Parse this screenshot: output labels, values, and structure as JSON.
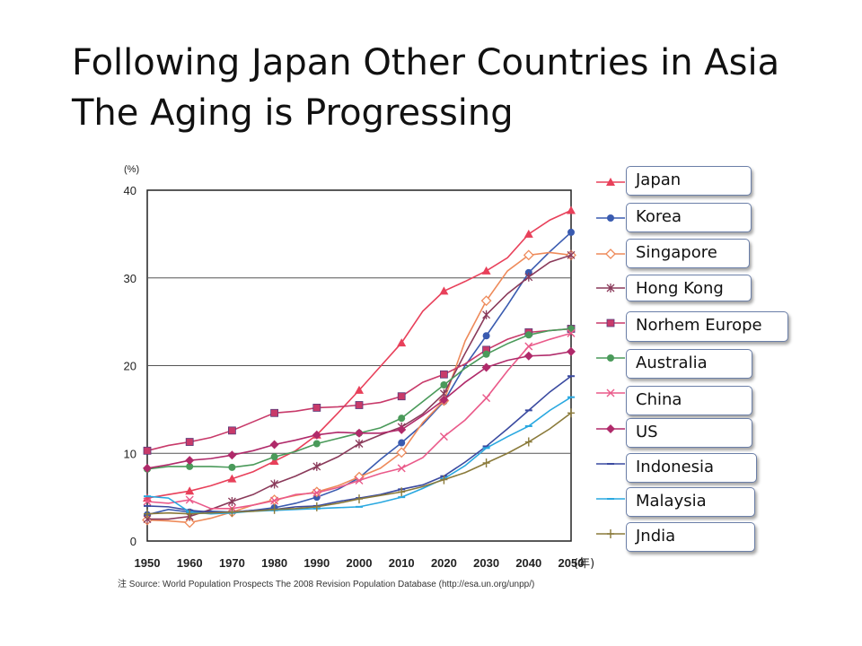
{
  "title_line1": "Following Japan  Other Countries in Asia",
  "title_line2": "The Aging is Progressing",
  "source": "注 Source: World Population Prospects The 2008 Revision Population Database (http://esa.un.org/unpp/)",
  "chart_data": {
    "type": "line",
    "y_unit": "(%)",
    "ylim": [
      0,
      40
    ],
    "yticks": [
      0,
      10,
      20,
      30,
      40
    ],
    "xlim": [
      1950,
      2050
    ],
    "xticks": [
      1950,
      1960,
      1970,
      1980,
      1990,
      2000,
      2010,
      2020,
      2030,
      2040,
      2050
    ],
    "x_unit": "(年)",
    "grid": "horizontal",
    "legend_position": "right",
    "x": [
      1950,
      1955,
      1960,
      1965,
      1970,
      1975,
      1980,
      1985,
      1990,
      1995,
      2000,
      2005,
      2010,
      2015,
      2020,
      2025,
      2030,
      2035,
      2040,
      2045,
      2050
    ],
    "series": [
      {
        "name": "Japan",
        "color": "#e8405a",
        "marker": "triangle",
        "values": [
          4.9,
          5.3,
          5.7,
          6.3,
          7.1,
          7.9,
          9.1,
          10.3,
          12.1,
          14.6,
          17.2,
          19.9,
          22.6,
          26.2,
          28.5,
          29.6,
          30.8,
          32.3,
          35.0,
          36.6,
          37.7
        ]
      },
      {
        "name": "Korea",
        "color": "#3a5bb0",
        "marker": "circle",
        "values": [
          3.0,
          3.6,
          3.3,
          3.4,
          3.3,
          3.5,
          3.8,
          4.3,
          5.0,
          5.9,
          7.2,
          9.3,
          11.2,
          13.3,
          15.9,
          20.0,
          23.4,
          26.9,
          30.6,
          33.0,
          35.2
        ]
      },
      {
        "name": "Singapore",
        "color": "#ee8a5a",
        "marker": "diamond-open",
        "values": [
          2.4,
          2.3,
          2.1,
          2.6,
          3.3,
          4.1,
          4.7,
          5.2,
          5.6,
          6.3,
          7.3,
          8.3,
          10.1,
          13.5,
          16.0,
          22.8,
          27.4,
          30.8,
          32.6,
          32.9,
          32.6
        ]
      },
      {
        "name": "Hong Kong",
        "color": "#8a3a5a",
        "marker": "star",
        "values": [
          2.5,
          2.5,
          2.8,
          3.6,
          4.5,
          5.3,
          6.5,
          7.4,
          8.5,
          9.6,
          11.1,
          12.1,
          13.0,
          14.5,
          16.8,
          21.4,
          25.8,
          28.2,
          30.1,
          31.8,
          32.6
        ]
      },
      {
        "name": "Norhem Europe",
        "color": "#c83a6a",
        "marker": "square",
        "values": [
          10.3,
          10.9,
          11.3,
          11.8,
          12.6,
          13.6,
          14.6,
          14.8,
          15.2,
          15.3,
          15.5,
          15.8,
          16.5,
          18.1,
          19.0,
          20.2,
          21.8,
          23.0,
          23.8,
          24.0,
          24.2
        ]
      },
      {
        "name": "Australia",
        "color": "#4a9a5a",
        "marker": "circle",
        "values": [
          8.2,
          8.5,
          8.5,
          8.5,
          8.4,
          8.7,
          9.6,
          10.2,
          11.1,
          11.7,
          12.3,
          12.9,
          14.0,
          15.9,
          17.8,
          19.7,
          21.3,
          22.5,
          23.5,
          24.0,
          24.2
        ]
      },
      {
        "name": "China",
        "color": "#ea5a8a",
        "marker": "x",
        "values": [
          4.5,
          4.3,
          4.7,
          3.7,
          3.7,
          4.1,
          4.6,
          5.3,
          5.5,
          6.1,
          6.9,
          7.7,
          8.3,
          9.5,
          11.9,
          13.8,
          16.3,
          19.4,
          22.2,
          23.0,
          23.7
        ]
      },
      {
        "name": "US",
        "color": "#b02a6a",
        "marker": "diamond",
        "values": [
          8.3,
          8.7,
          9.2,
          9.4,
          9.8,
          10.3,
          11.0,
          11.5,
          12.1,
          12.4,
          12.3,
          12.3,
          12.7,
          14.3,
          16.1,
          18.1,
          19.8,
          20.6,
          21.1,
          21.2,
          21.6
        ]
      },
      {
        "name": "Indonesia",
        "color": "#3a4aa0",
        "marker": "dash",
        "values": [
          4.0,
          3.9,
          3.5,
          3.3,
          3.3,
          3.5,
          3.6,
          3.9,
          4.0,
          4.5,
          4.9,
          5.3,
          5.9,
          6.4,
          7.4,
          9.0,
          10.8,
          12.8,
          14.9,
          17.0,
          18.8
        ]
      },
      {
        "name": "Malaysia",
        "color": "#29a8e0",
        "marker": "dash",
        "values": [
          5.1,
          4.9,
          3.3,
          3.1,
          3.2,
          3.4,
          3.5,
          3.6,
          3.7,
          3.8,
          3.9,
          4.4,
          5.0,
          6.0,
          7.1,
          8.6,
          10.6,
          11.9,
          13.1,
          14.9,
          16.4
        ]
      },
      {
        "name": "Jndia",
        "color": "#8a7a3a",
        "marker": "plus",
        "values": [
          3.1,
          3.2,
          3.1,
          3.2,
          3.3,
          3.4,
          3.6,
          3.7,
          3.9,
          4.3,
          4.8,
          5.2,
          5.6,
          6.2,
          7.0,
          7.8,
          8.9,
          10.0,
          11.3,
          12.8,
          14.6
        ]
      }
    ]
  }
}
